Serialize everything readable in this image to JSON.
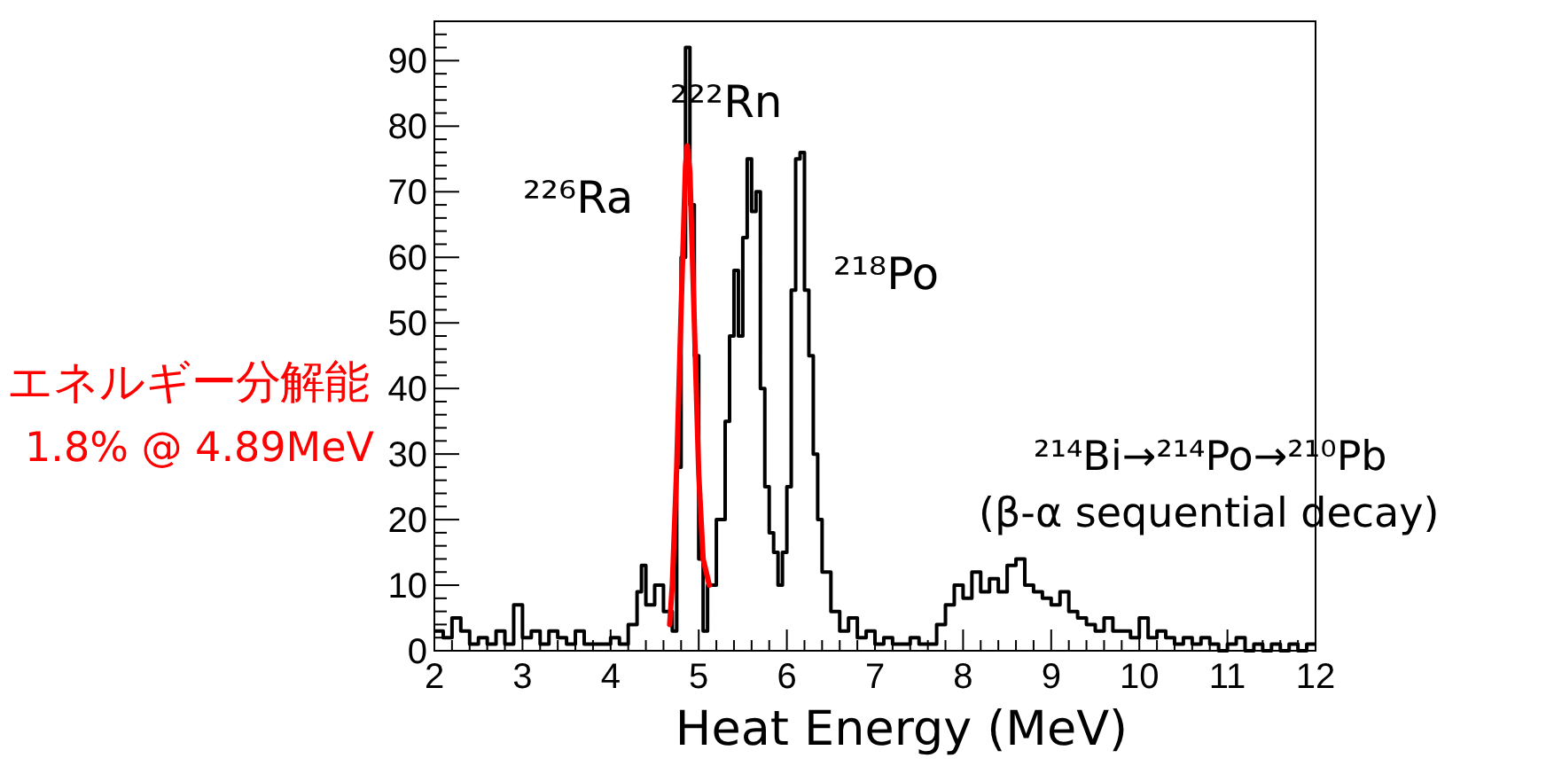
{
  "chart_data": {
    "type": "step",
    "xlabel": "Heat Energy (MeV)",
    "xlim": [
      2,
      12
    ],
    "xticks": [
      2,
      3,
      4,
      5,
      6,
      7,
      8,
      9,
      10,
      11,
      12
    ],
    "ylim": [
      0,
      96
    ],
    "yticks": [
      0,
      10,
      20,
      30,
      40,
      50,
      60,
      70,
      80,
      90
    ],
    "series": [
      {
        "type": "step",
        "color": "#000000",
        "x": [
          2.0,
          2.1,
          2.2,
          2.3,
          2.4,
          2.5,
          2.6,
          2.7,
          2.8,
          2.9,
          3.0,
          3.1,
          3.2,
          3.3,
          3.4,
          3.5,
          3.6,
          3.7,
          3.8,
          3.9,
          4.0,
          4.1,
          4.2,
          4.3,
          4.35,
          4.4,
          4.5,
          4.6,
          4.7,
          4.75,
          4.8,
          4.85,
          4.9,
          4.95,
          5.0,
          5.05,
          5.1,
          5.2,
          5.3,
          5.35,
          5.4,
          5.45,
          5.5,
          5.55,
          5.6,
          5.65,
          5.7,
          5.75,
          5.8,
          5.85,
          5.9,
          5.95,
          6.0,
          6.05,
          6.1,
          6.15,
          6.2,
          6.25,
          6.3,
          6.35,
          6.4,
          6.5,
          6.6,
          6.7,
          6.8,
          6.9,
          7.0,
          7.1,
          7.2,
          7.3,
          7.4,
          7.5,
          7.6,
          7.7,
          7.8,
          7.9,
          8.0,
          8.1,
          8.2,
          8.3,
          8.4,
          8.5,
          8.6,
          8.7,
          8.8,
          8.9,
          9.0,
          9.1,
          9.2,
          9.3,
          9.4,
          9.5,
          9.6,
          9.7,
          9.8,
          9.9,
          10.0,
          10.1,
          10.2,
          10.3,
          10.4,
          10.5,
          10.6,
          10.7,
          10.8,
          10.9,
          11.0,
          11.1,
          11.2,
          11.3,
          11.4,
          11.5,
          11.6,
          11.7,
          11.8,
          11.9,
          12.0
        ],
        "values": [
          3,
          2,
          5,
          3,
          1,
          2,
          1,
          3,
          1,
          7,
          2,
          3,
          1,
          3,
          2,
          1,
          3,
          1,
          1,
          1,
          2,
          1,
          4,
          9,
          13,
          7,
          10,
          6,
          3,
          28,
          60,
          92,
          68,
          45,
          14,
          3,
          10,
          20,
          35,
          48,
          58,
          48,
          63,
          75,
          67,
          70,
          40,
          25,
          18,
          15,
          10,
          15,
          25,
          55,
          75,
          76,
          55,
          45,
          30,
          20,
          12,
          6,
          3,
          5,
          2,
          3,
          1,
          2,
          1,
          1,
          2,
          1,
          1,
          4,
          7,
          10,
          8,
          12,
          9,
          11,
          9,
          13,
          14,
          10,
          9,
          8,
          7,
          9,
          6,
          5,
          4,
          3,
          5,
          3,
          3,
          2,
          5,
          2,
          3,
          2,
          1,
          2,
          1,
          2,
          1,
          0,
          1,
          2,
          0,
          1,
          0,
          1,
          0,
          1,
          0,
          1,
          1
        ]
      },
      {
        "type": "line",
        "color": "#ff0000",
        "x": [
          4.67,
          4.7,
          4.75,
          4.8,
          4.85,
          4.87,
          4.9,
          4.95,
          5.0,
          5.05,
          5.12
        ],
        "values": [
          4,
          10,
          28,
          52,
          74,
          77,
          73,
          50,
          27,
          14,
          10
        ]
      }
    ],
    "annotations": [
      "²²⁶Ra",
      "²²²Rn",
      "²¹⁸Po",
      "²¹⁴Bi→²¹⁴Po→²¹⁰Pb",
      "(β-α sequential decay)",
      "エネルギー分解能",
      "1.8% @ 4.89MeV"
    ]
  }
}
